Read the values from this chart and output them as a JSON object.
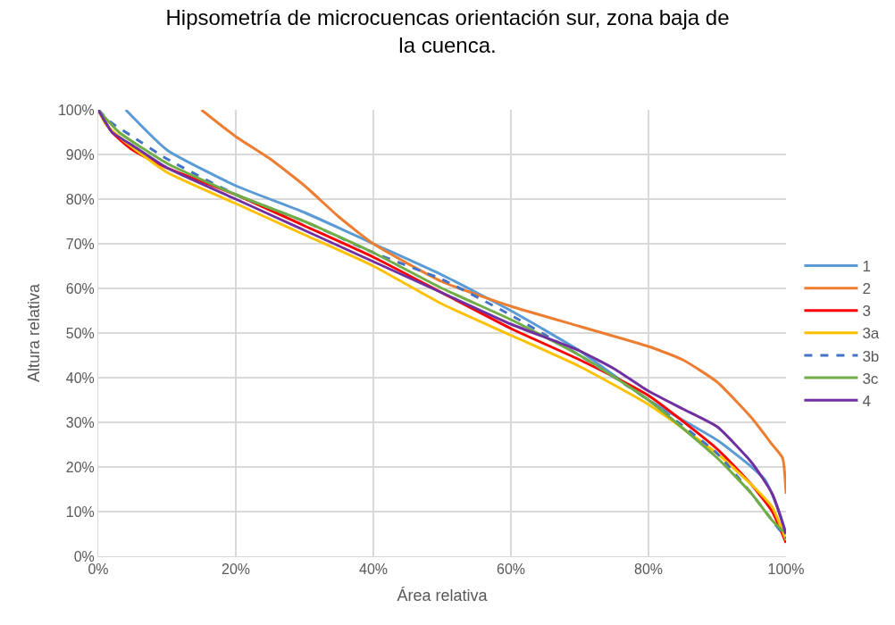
{
  "chart_data": {
    "type": "line",
    "title": "Hipsometría de microcuencas orientación sur, zona baja de la cuenca.",
    "xlabel": "Área relativa",
    "ylabel": "Altura relativa",
    "xlim": [
      0,
      100
    ],
    "ylim": [
      0,
      100
    ],
    "xticks": [
      {
        "value": 0,
        "label": "0%"
      },
      {
        "value": 20,
        "label": "20%"
      },
      {
        "value": 40,
        "label": "40%"
      },
      {
        "value": 60,
        "label": "60%"
      },
      {
        "value": 80,
        "label": "80%"
      },
      {
        "value": 100,
        "label": "100%"
      }
    ],
    "yticks": [
      {
        "value": 0,
        "label": "0%"
      },
      {
        "value": 10,
        "label": "10%"
      },
      {
        "value": 20,
        "label": "20%"
      },
      {
        "value": 30,
        "label": "30%"
      },
      {
        "value": 40,
        "label": "40%"
      },
      {
        "value": 50,
        "label": "50%"
      },
      {
        "value": 60,
        "label": "60%"
      },
      {
        "value": 70,
        "label": "70%"
      },
      {
        "value": 80,
        "label": "80%"
      },
      {
        "value": 90,
        "label": "90%"
      },
      {
        "value": 100,
        "label": "100%"
      }
    ],
    "grid": true,
    "legend": "right",
    "series": [
      {
        "name": "1",
        "color": "#5b9bd5",
        "x": [
          4,
          10,
          20,
          30,
          40,
          50,
          60,
          70,
          80,
          90,
          95,
          97,
          99,
          100
        ],
        "values": [
          100,
          91,
          83,
          77,
          70,
          63,
          55,
          46,
          35,
          26,
          20,
          17,
          10,
          5
        ]
      },
      {
        "name": "2",
        "color": "#ed7d31",
        "x": [
          15,
          20,
          25,
          30,
          35,
          40,
          50,
          60,
          70,
          80,
          85,
          90,
          95,
          98,
          99.5,
          100
        ],
        "values": [
          100,
          94,
          89,
          83,
          76,
          70,
          61.5,
          56,
          51.5,
          47,
          44,
          39,
          31,
          25,
          22,
          14
        ]
      },
      {
        "name": "3",
        "color": "#ff0000",
        "x": [
          0,
          2,
          5,
          10,
          20,
          30,
          40,
          50,
          60,
          70,
          80,
          90,
          95,
          98,
          100
        ],
        "values": [
          100,
          95,
          91,
          87,
          81,
          74,
          67,
          59,
          51,
          44,
          36,
          24,
          16,
          10,
          3
        ]
      },
      {
        "name": "3a",
        "color": "#ffc000",
        "x": [
          0,
          1,
          3,
          10,
          20,
          30,
          40,
          50,
          60,
          70,
          80,
          90,
          95,
          98,
          100
        ],
        "values": [
          100,
          97,
          94,
          86,
          79,
          72,
          65,
          56.5,
          49.5,
          42.5,
          34,
          23,
          16,
          11,
          3.6
        ]
      },
      {
        "name": "3b",
        "color": "#4472c4",
        "line_style": "dashed",
        "x": [
          0,
          2,
          5,
          10,
          20,
          30,
          40,
          50,
          60,
          70,
          80,
          90,
          95,
          98,
          100
        ],
        "values": [
          100,
          97,
          94,
          89,
          81,
          75,
          68,
          62,
          54,
          45,
          35,
          23,
          14,
          8,
          4
        ]
      },
      {
        "name": "3c",
        "color": "#70ad47",
        "x": [
          0,
          3,
          10,
          20,
          30,
          40,
          50,
          60,
          70,
          80,
          90,
          95,
          98,
          100
        ],
        "values": [
          100,
          95,
          88,
          81,
          75,
          68,
          60,
          53,
          45,
          35,
          22,
          14,
          8,
          5
        ]
      },
      {
        "name": "4",
        "color": "#7030a0",
        "x": [
          0,
          2,
          5,
          10,
          20,
          30,
          40,
          50,
          60,
          70,
          75,
          80,
          85,
          90,
          95,
          98,
          100
        ],
        "values": [
          100,
          95,
          92,
          87,
          80,
          73,
          66,
          59,
          52,
          46,
          42,
          37,
          33,
          29,
          21,
          14,
          5
        ]
      }
    ]
  }
}
